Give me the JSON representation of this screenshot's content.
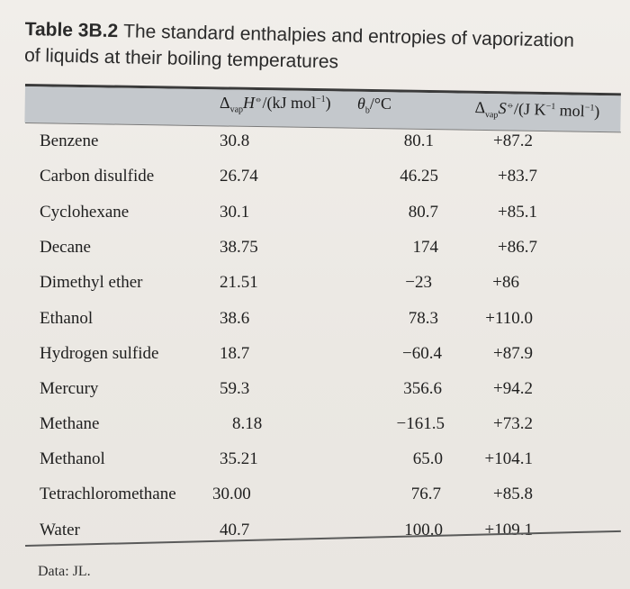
{
  "title": {
    "label": "Table 3B.2",
    "text_line1": "The standard enthalpies and entropies of vaporization",
    "text_line2": "of liquids at their boiling temperatures"
  },
  "headers": {
    "col1": "ΔvapH⦵/(kJ mol−1)",
    "col2": "θb/°C",
    "col3": "ΔvapS⦵/(J K−1 mol−1)"
  },
  "rows": [
    {
      "name": "Benzene",
      "dH": "30.8",
      "tb": "80.1",
      "dS": "+87.2"
    },
    {
      "name": "Carbon disulfide",
      "dH": "26.74",
      "tb": "46.25",
      "dS": "+83.7"
    },
    {
      "name": "Cyclohexane",
      "dH": "30.1",
      "tb": "80.7",
      "dS": "+85.1"
    },
    {
      "name": "Decane",
      "dH": "38.75",
      "tb": "174",
      "dS": "+86.7"
    },
    {
      "name": "Dimethyl ether",
      "dH": "21.51",
      "tb": "−23",
      "dS": "+86"
    },
    {
      "name": "Ethanol",
      "dH": "38.6",
      "tb": "78.3",
      "dS": "+110.0"
    },
    {
      "name": "Hydrogen sulfide",
      "dH": "18.7",
      "tb": "−60.4",
      "dS": "+87.9"
    },
    {
      "name": "Mercury",
      "dH": "59.3",
      "tb": "356.6",
      "dS": "+94.2"
    },
    {
      "name": "Methane",
      "dH": "8.18",
      "tb": "−161.5",
      "dS": "+73.2"
    },
    {
      "name": "Methanol",
      "dH": "35.21",
      "tb": "65.0",
      "dS": "+104.1"
    },
    {
      "name": "Tetrachloromethane",
      "dH": "30.00",
      "tb": "76.7",
      "dS": "+85.8"
    },
    {
      "name": "Water",
      "dH": "40.7",
      "tb": "100.0",
      "dS": "+109.1"
    }
  ],
  "source": "Data: JL."
}
